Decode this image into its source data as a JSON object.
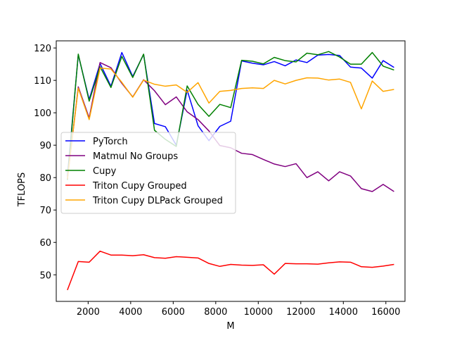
{
  "chart_data": {
    "type": "line",
    "xlabel": "M",
    "ylabel": "TFLOPS",
    "xlim": [
      500,
      16900
    ],
    "ylim": [
      41.8,
      122.2
    ],
    "xticks": [
      2000,
      4000,
      6000,
      8000,
      10000,
      12000,
      14000,
      16000
    ],
    "yticks": [
      50,
      60,
      70,
      80,
      90,
      100,
      110,
      120
    ],
    "grid": false,
    "legend_position": "center-left",
    "x": [
      1024,
      1536,
      2048,
      2560,
      3072,
      3584,
      4096,
      4608,
      5120,
      5632,
      6144,
      6656,
      7168,
      7680,
      8192,
      8704,
      9216,
      9728,
      10240,
      10752,
      11264,
      11776,
      12288,
      12800,
      13312,
      13824,
      14336,
      14848,
      15360,
      15872,
      16384
    ],
    "series": [
      {
        "name": "PyTorch",
        "color": "#0000ff",
        "values": [
          80.3,
          117.9,
          104.1,
          115.2,
          108.2,
          118.6,
          111.2,
          118.0,
          96.7,
          95.7,
          90.0,
          107.0,
          96.0,
          91.4,
          95.8,
          97.4,
          116.0,
          115.3,
          114.8,
          115.8,
          114.5,
          116.3,
          115.5,
          117.8,
          118.0,
          117.7,
          114.1,
          113.8,
          110.7,
          116.1,
          114.0
        ]
      },
      {
        "name": "Matmul No Groups",
        "color": "#800080",
        "values": [
          79.5,
          108.0,
          98.4,
          115.5,
          113.9,
          109.1,
          104.9,
          110.2,
          106.8,
          102.5,
          104.9,
          100.3,
          97.9,
          94.4,
          89.9,
          89.2,
          87.5,
          87.1,
          85.6,
          84.2,
          83.4,
          84.3,
          80.0,
          81.8,
          79.0,
          81.8,
          80.5,
          76.6,
          75.7,
          77.9,
          75.7
        ]
      },
      {
        "name": "Cupy",
        "color": "#008000",
        "values": [
          79.3,
          118.1,
          103.6,
          114.2,
          107.8,
          117.4,
          110.9,
          118.1,
          94.6,
          91.8,
          89.6,
          108.3,
          102.6,
          98.9,
          102.6,
          101.6,
          116.2,
          115.9,
          115.1,
          117.1,
          116.1,
          115.7,
          118.4,
          117.9,
          118.9,
          117.2,
          115.0,
          115.0,
          118.6,
          114.4,
          113.2
        ]
      },
      {
        "name": "Triton Cupy Grouped",
        "color": "#ff0000",
        "values": [
          45.3,
          54.1,
          53.9,
          57.3,
          56.1,
          56.1,
          55.9,
          56.2,
          55.3,
          55.1,
          55.6,
          55.4,
          55.2,
          53.5,
          52.6,
          53.2,
          53.0,
          52.9,
          53.1,
          50.2,
          53.5,
          53.4,
          53.4,
          53.3,
          53.7,
          54.0,
          53.9,
          52.5,
          52.3,
          52.7,
          53.2
        ]
      },
      {
        "name": "Triton Cupy DLPack Grouped",
        "color": "#ffa500",
        "values": [
          79.6,
          107.6,
          97.9,
          113.8,
          113.5,
          109.4,
          104.8,
          110.1,
          108.8,
          108.2,
          108.6,
          106.3,
          109.3,
          103.0,
          106.6,
          106.9,
          107.5,
          107.7,
          107.5,
          110.0,
          108.9,
          110.0,
          110.8,
          110.7,
          110.1,
          110.4,
          109.4,
          101.2,
          109.8,
          106.6,
          107.2
        ]
      }
    ]
  }
}
